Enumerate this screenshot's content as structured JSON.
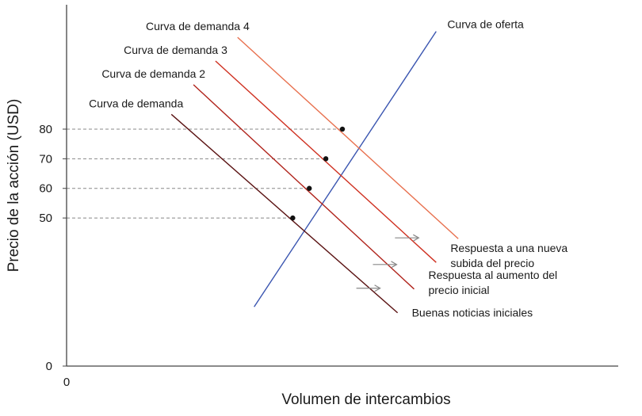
{
  "chart_data": {
    "type": "line",
    "xlabel": "Volumen de intercambios",
    "ylabel": "Precio de la acción (USD)",
    "x_origin_label": "0",
    "yticks": [
      {
        "value": 0,
        "label": "0"
      },
      {
        "value": 50,
        "label": "50"
      },
      {
        "value": 60,
        "label": "60"
      },
      {
        "value": 70,
        "label": "70"
      },
      {
        "value": 80,
        "label": "80"
      }
    ],
    "xlim": [
      0,
      100
    ],
    "ylim": [
      0,
      122
    ],
    "series": [
      {
        "name": "Curva de oferta",
        "color": "#3a55b0",
        "points": [
          [
            34,
            20
          ],
          [
            67,
            113
          ]
        ]
      },
      {
        "name": "Curva de demanda",
        "color": "#5a1212",
        "points": [
          [
            19,
            85
          ],
          [
            60,
            18
          ]
        ]
      },
      {
        "name": "Curva de demanda 2",
        "color": "#b0231b",
        "points": [
          [
            23,
            95
          ],
          [
            63,
            26
          ]
        ]
      },
      {
        "name": "Curva de demanda 3",
        "color": "#cf3020",
        "points": [
          [
            27,
            103
          ],
          [
            67,
            35
          ]
        ]
      },
      {
        "name": "Curva de demanda 4",
        "color": "#e8704e",
        "points": [
          [
            31,
            111
          ],
          [
            71,
            43
          ]
        ]
      }
    ],
    "equilibria": [
      {
        "x": 41,
        "y": 50
      },
      {
        "x": 44,
        "y": 60
      },
      {
        "x": 47,
        "y": 70
      },
      {
        "x": 50,
        "y": 80
      }
    ],
    "annotations": [
      {
        "lines": [
          "Buenas noticias iniciales"
        ],
        "series": "Curva de demanda"
      },
      {
        "lines": [
          "Respuesta al aumento del",
          "precio inicial"
        ],
        "series": "Curva de demanda 2"
      },
      {
        "lines": [
          "Respuesta a una nueva",
          "subida del precio"
        ],
        "series": "Curva de demanda 3"
      }
    ],
    "colors": {
      "axis": "#444444",
      "guide": "#888888",
      "arrow": "#888888",
      "point": "#111111"
    }
  }
}
